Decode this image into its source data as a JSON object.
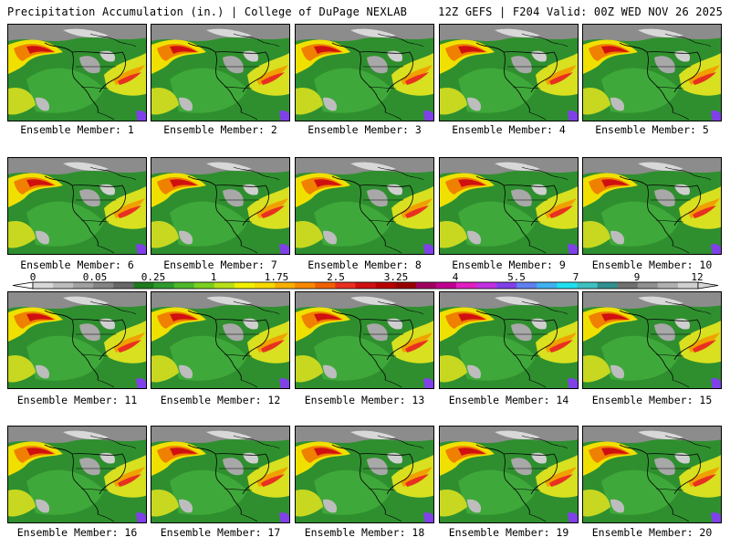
{
  "header": {
    "left": "Precipitation Accumulation (in.) | College of DuPage NEXLAB",
    "right": "12Z GEFS | F204 Valid: 00Z WED NOV 26 2025"
  },
  "members": [
    "Ensemble Member: 1",
    "Ensemble Member: 2",
    "Ensemble Member: 3",
    "Ensemble Member: 4",
    "Ensemble Member: 5",
    "Ensemble Member: 6",
    "Ensemble Member: 7",
    "Ensemble Member: 8",
    "Ensemble Member: 9",
    "Ensemble Member: 10",
    "Ensemble Member: 11",
    "Ensemble Member: 12",
    "Ensemble Member: 13",
    "Ensemble Member: 14",
    "Ensemble Member: 15",
    "Ensemble Member: 16",
    "Ensemble Member: 17",
    "Ensemble Member: 18",
    "Ensemble Member: 19",
    "Ensemble Member: 20"
  ],
  "colorbar": {
    "ticks": [
      "0",
      "0.05",
      "0.25",
      "1",
      "1.75",
      "2.5",
      "3.25",
      "4",
      "5.5",
      "7",
      "9",
      "12"
    ],
    "colors": [
      "#d8d8d8",
      "#bcbcbc",
      "#a0a0a0",
      "#848484",
      "#686868",
      "#1e7a1e",
      "#2e9a2e",
      "#4cb82a",
      "#7ad020",
      "#b8e018",
      "#f0f000",
      "#f8d800",
      "#f8b000",
      "#f88800",
      "#f06000",
      "#e83020",
      "#d01010",
      "#b80000",
      "#980000",
      "#a00060",
      "#c00090",
      "#e020c0",
      "#c030e0",
      "#8040e8",
      "#6080f0",
      "#40b0f0",
      "#20e0f0",
      "#40c0c0",
      "#309090",
      "#707070",
      "#909090",
      "#b0b0b0",
      "#d0d0d0"
    ]
  }
}
